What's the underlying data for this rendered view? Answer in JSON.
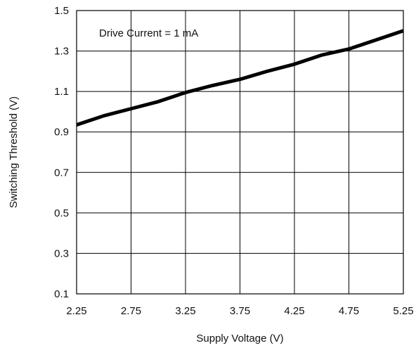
{
  "chart_data": {
    "type": "line",
    "title": "",
    "xlabel": "Supply Voltage (V)",
    "ylabel": "Switching Threshold (V)",
    "annotation": "Drive Current = 1 mA",
    "xlim": [
      2.25,
      5.25
    ],
    "ylim": [
      0.1,
      1.5
    ],
    "xticks": [
      "2.25",
      "2.75",
      "3.25",
      "3.75",
      "4.25",
      "4.75",
      "5.25"
    ],
    "yticks": [
      "0.1",
      "0.3",
      "0.5",
      "0.7",
      "0.9",
      "1.1",
      "1.3",
      "1.5"
    ],
    "grid": true,
    "series": [
      {
        "name": "",
        "color": "#000000",
        "x": [
          2.25,
          2.5,
          2.75,
          3.0,
          3.25,
          3.5,
          3.75,
          4.0,
          4.25,
          4.5,
          4.75,
          5.0,
          5.25
        ],
        "y": [
          0.935,
          0.98,
          1.015,
          1.05,
          1.095,
          1.13,
          1.16,
          1.2,
          1.235,
          1.28,
          1.31,
          1.355,
          1.4
        ]
      }
    ]
  }
}
